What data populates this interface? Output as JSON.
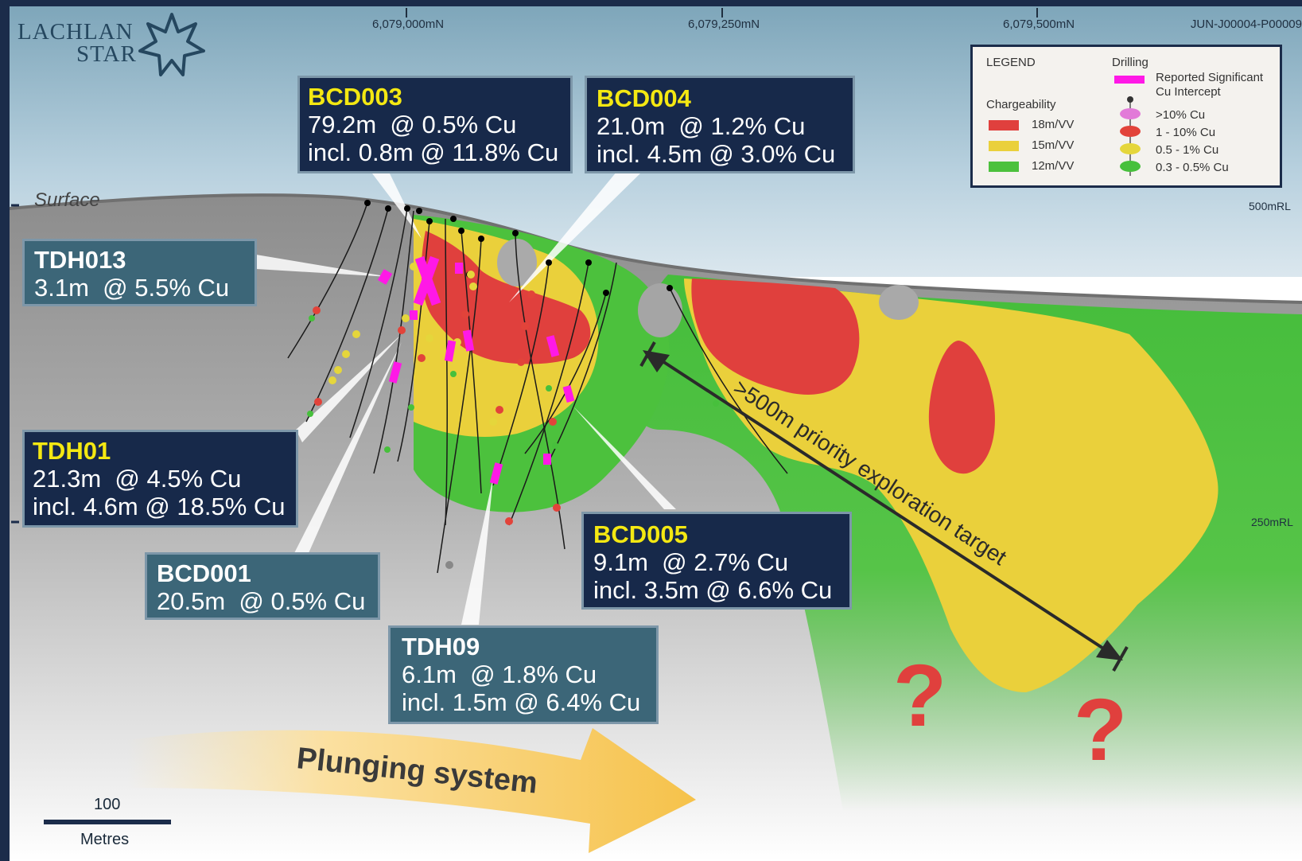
{
  "logo": {
    "word1": "LACHLAN",
    "word2": "STAR"
  },
  "project_code": "JUN-J00004-P00009",
  "northings": [
    "6,079,000mN",
    "6,079,250mN",
    "6,079,500mN"
  ],
  "elevations": [
    "500mRL",
    "250mRL"
  ],
  "surface_label": "Surface",
  "legend": {
    "title": "LEGEND",
    "chargeability_title": "Chargeability",
    "chargeability": [
      {
        "label": "18m/VV",
        "color": "#e0403d"
      },
      {
        "label": "15m/VV",
        "color": "#ead03b"
      },
      {
        "label": "12m/VV",
        "color": "#4cc13d"
      }
    ],
    "drilling_title": "Drilling",
    "intercept_label_1": "Reported Significant",
    "intercept_label_2": "Cu Intercept",
    "intercept_color": "#ff19e6",
    "grades": [
      {
        "label": ">10% Cu",
        "color": "#e27ad8"
      },
      {
        "label": "1 - 10% Cu",
        "color": "#e2433a"
      },
      {
        "label": "0.5 - 1% Cu",
        "color": "#e5d63b"
      },
      {
        "label": "0.3 - 0.5% Cu",
        "color": "#47c03c"
      }
    ]
  },
  "intercepts": {
    "bcd003": {
      "hole": "BCD003",
      "line1": "79.2m  @ 0.5% Cu",
      "line2": "incl. 0.8m @ 11.8% Cu"
    },
    "bcd004": {
      "hole": "BCD004",
      "line1": "21.0m  @ 1.2% Cu",
      "line2": "incl. 4.5m @ 3.0% Cu"
    },
    "tdh013": {
      "hole": "TDH013",
      "line1": "3.1m  @ 5.5% Cu"
    },
    "tdh01": {
      "hole": "TDH01",
      "line1": "21.3m  @ 4.5% Cu",
      "line2": "incl. 4.6m @ 18.5% Cu"
    },
    "bcd001": {
      "hole": "BCD001",
      "line1": "20.5m  @ 0.5% Cu"
    },
    "tdh09": {
      "hole": "TDH09",
      "line1": "6.1m  @ 1.8% Cu",
      "line2": "incl. 1.5m @ 6.4% Cu"
    },
    "bcd005": {
      "hole": "BCD005",
      "line1": "9.1m  @ 2.7% Cu",
      "line2": "incl. 3.5m @ 6.6% Cu"
    }
  },
  "target_label": ">500m priority exploration target",
  "plunge_label": "Plunging system",
  "question_mark": "?",
  "scale": {
    "value": "100",
    "unit": "Metres"
  }
}
